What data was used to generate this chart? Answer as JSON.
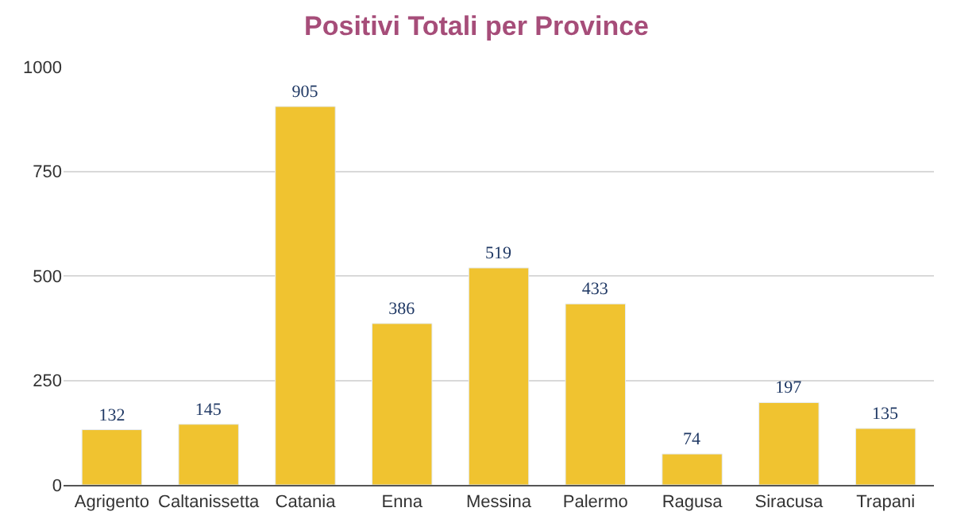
{
  "chart_data": {
    "type": "bar",
    "title": "Positivi Totali per Province",
    "categories": [
      "Agrigento",
      "Caltanissetta",
      "Catania",
      "Enna",
      "Messina",
      "Palermo",
      "Ragusa",
      "Siracusa",
      "Trapani"
    ],
    "values": [
      132,
      145,
      905,
      386,
      519,
      433,
      74,
      197,
      135
    ],
    "color": "#f0c330",
    "ylim": [
      0,
      1000
    ],
    "yticks": [
      0,
      250,
      500,
      750,
      1000
    ],
    "grid": "y",
    "data_labels": true,
    "legend": false
  }
}
